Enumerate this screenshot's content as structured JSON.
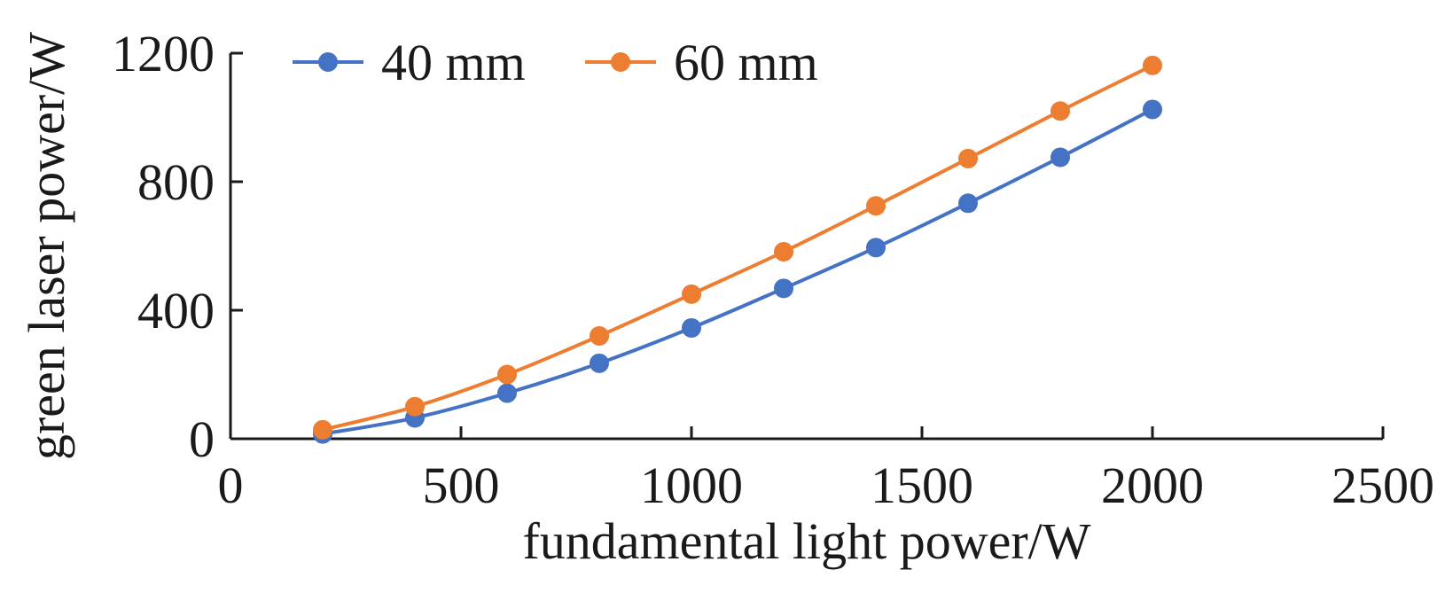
{
  "chart_data": {
    "type": "line",
    "xlabel": "fundamental light power/W",
    "ylabel": "green laser power/W",
    "xlim": [
      0,
      2500
    ],
    "ylim": [
      0,
      1200
    ],
    "x_ticks": [
      "0",
      "500",
      "1000",
      "1500",
      "2000",
      "2500"
    ],
    "y_ticks": [
      "0",
      "400",
      "800",
      "1200"
    ],
    "grid": false,
    "legend_position": "top-left",
    "x": [
      200,
      400,
      600,
      800,
      1000,
      1200,
      1400,
      1600,
      1800,
      2000
    ],
    "series": [
      {
        "name": "40 mm",
        "color": "#4472C4",
        "values": [
          15,
          65,
          142,
          235,
          345,
          468,
          595,
          733,
          876,
          1025
        ]
      },
      {
        "name": "60 mm",
        "color": "#ED7D31",
        "values": [
          28,
          100,
          200,
          320,
          450,
          582,
          725,
          872,
          1020,
          1162
        ]
      }
    ]
  }
}
